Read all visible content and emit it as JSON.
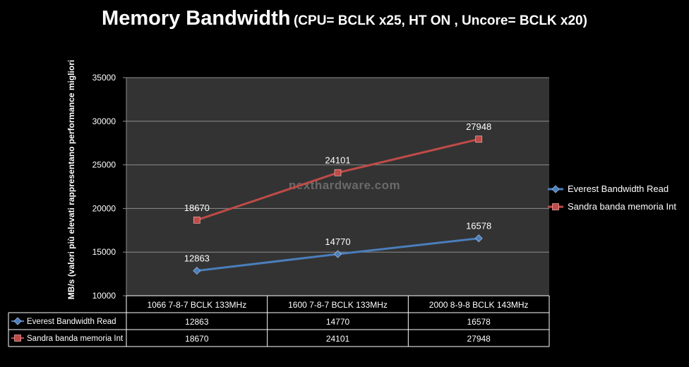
{
  "chart_data": {
    "type": "line",
    "title": "Memory Bandwidth",
    "subtitle": "(CPU= BCLK x25, HT ON , Uncore= BCLK x20)",
    "ylabel": "MB/s (valori più elevati rappresentano performance migliori",
    "xlabel": "",
    "watermark": "nexthardware.com",
    "categories": [
      "1066 7-8-7 BCLK 133MHz",
      "1600 7-8-7 BCLK 133MHz",
      "2000 8-9-8 BCLK 143MHz"
    ],
    "ylim": [
      10000,
      35000
    ],
    "yticks": [
      10000,
      15000,
      20000,
      25000,
      30000,
      35000
    ],
    "grid": true,
    "legend_position": "right",
    "series": [
      {
        "name": "Everest Bandwidth Read",
        "values": [
          12863,
          14770,
          16578
        ],
        "color": "#4a7ebb",
        "marker": "diamond"
      },
      {
        "name": "Sandra banda memoria Int",
        "values": [
          18670,
          24101,
          27948
        ],
        "color": "#be4b48",
        "marker": "square"
      }
    ],
    "data_table": true
  },
  "colors": {
    "plot_background": "#333333",
    "gridline": "#8c8c8c",
    "page_background": "#000000",
    "text": "#ffffff"
  }
}
